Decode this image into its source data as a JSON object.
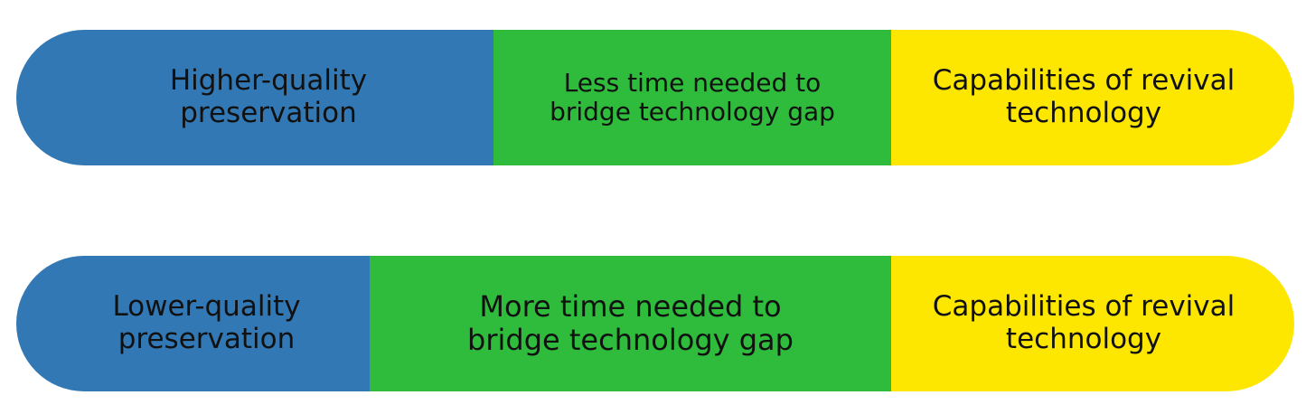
{
  "colors": {
    "preservation": "#3278b4",
    "time_gap": "#2fbb3b",
    "revival": "#fde600"
  },
  "rows": [
    {
      "preservation": "Higher-quality\npreservation",
      "time_gap": "Less time needed to\nbridge technology gap",
      "revival": "Capabilities of revival\ntechnology"
    },
    {
      "preservation": "Lower-quality\npreservation",
      "time_gap": "More time needed to\nbridge technology gap",
      "revival": "Capabilities of revival\ntechnology"
    }
  ]
}
